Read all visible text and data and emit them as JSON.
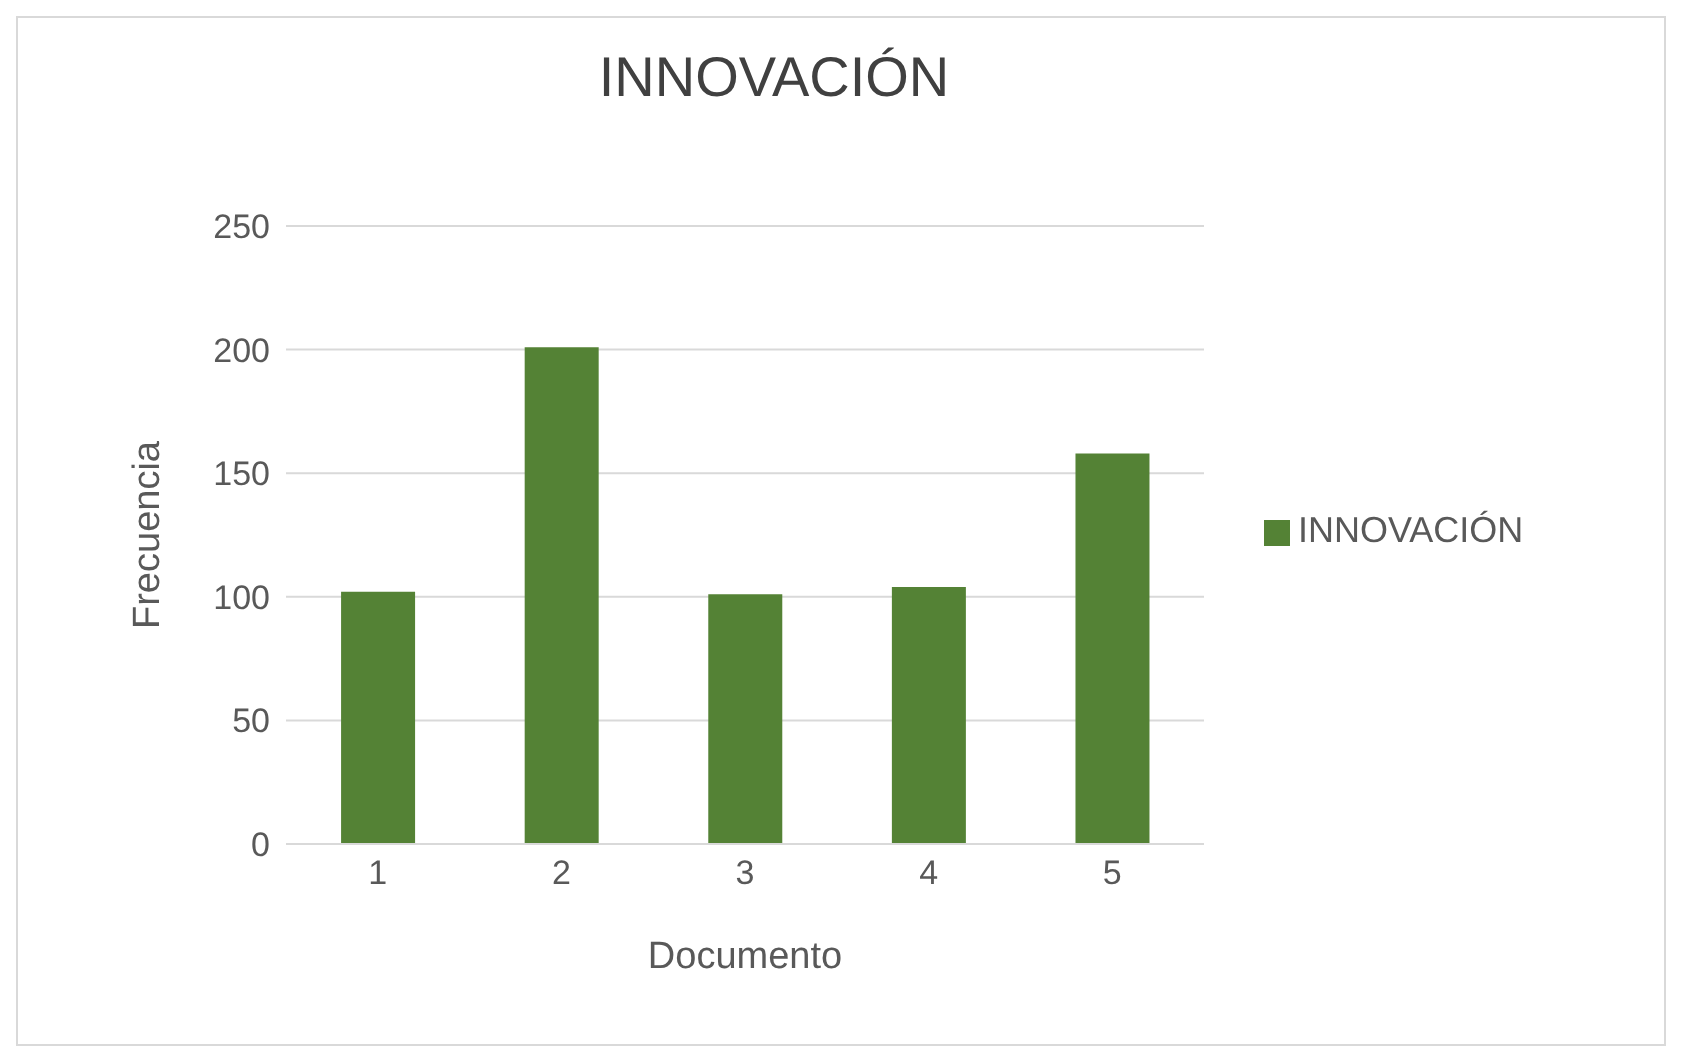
{
  "chart_data": {
    "type": "bar",
    "title": "INNOVACIÓN",
    "xlabel": "Documento",
    "ylabel": "Frecuencia",
    "categories": [
      "1",
      "2",
      "3",
      "4",
      "5"
    ],
    "series": [
      {
        "name": "INNOVACIÓN",
        "color": "#548235",
        "values": [
          102,
          201,
          101,
          104,
          158
        ]
      }
    ],
    "ylim": [
      0,
      250
    ],
    "yticks": [
      0,
      50,
      100,
      150,
      200,
      250
    ],
    "grid": "y",
    "legend": "right"
  }
}
